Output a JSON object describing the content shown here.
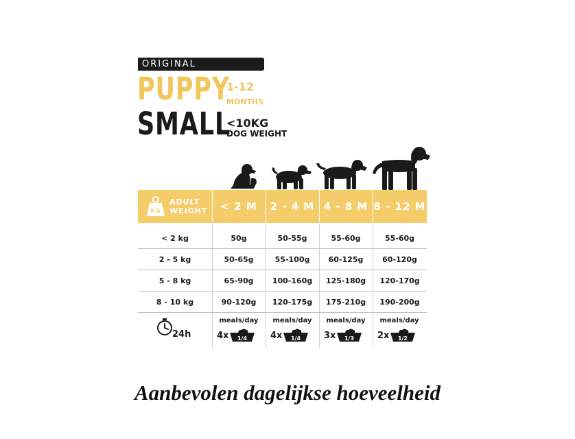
{
  "header": {
    "banner": "ORIGINAL",
    "line1": "PUPPY",
    "age_range": "1-12",
    "age_unit": "MONTHS",
    "line2": "SMALL",
    "weight_limit": "<10KG",
    "weight_unit": "DOG WEIGHT"
  },
  "icons": {
    "dogs": [
      "sitting-puppy-icon",
      "small-puppy-icon",
      "medium-puppy-icon",
      "large-puppy-icon"
    ],
    "weight": "kg-weight-icon",
    "clock": "clock-icon",
    "bowl": "food-bowl-icon"
  },
  "colors": {
    "accent": "#f4cc6a",
    "text": "#1a1a1a",
    "banner": "#1b1b1b"
  },
  "table": {
    "weight_icon_label": "KG",
    "adult_weight_label": [
      "ADULT",
      "WEIGHT"
    ],
    "columns": [
      "< 2 M",
      "2 - 4 M",
      "4 - 8 M",
      "8 - 12 M"
    ],
    "rows": [
      {
        "weight": "< 2 kg",
        "values": [
          "50g",
          "50-55g",
          "55-60g",
          "55-60g"
        ]
      },
      {
        "weight": "2 - 5 kg",
        "values": [
          "50-65g",
          "55-100g",
          "60-125g",
          "60-120g"
        ]
      },
      {
        "weight": "5 - 8 kg",
        "values": [
          "65-90g",
          "100-160g",
          "125-180g",
          "120-170g"
        ]
      },
      {
        "weight": "8 - 10 kg",
        "values": [
          "90-120g",
          "120-175g",
          "175-210g",
          "190-200g"
        ]
      }
    ],
    "meals": {
      "clock_label": "24h",
      "label": "meals/day",
      "items": [
        {
          "count": "4x",
          "portion": "1/4"
        },
        {
          "count": "4x",
          "portion": "1/4"
        },
        {
          "count": "3x",
          "portion": "1/3"
        },
        {
          "count": "2x",
          "portion": "1/2"
        }
      ]
    }
  },
  "caption": "Aanbevolen dagelijkse hoeveelheid"
}
